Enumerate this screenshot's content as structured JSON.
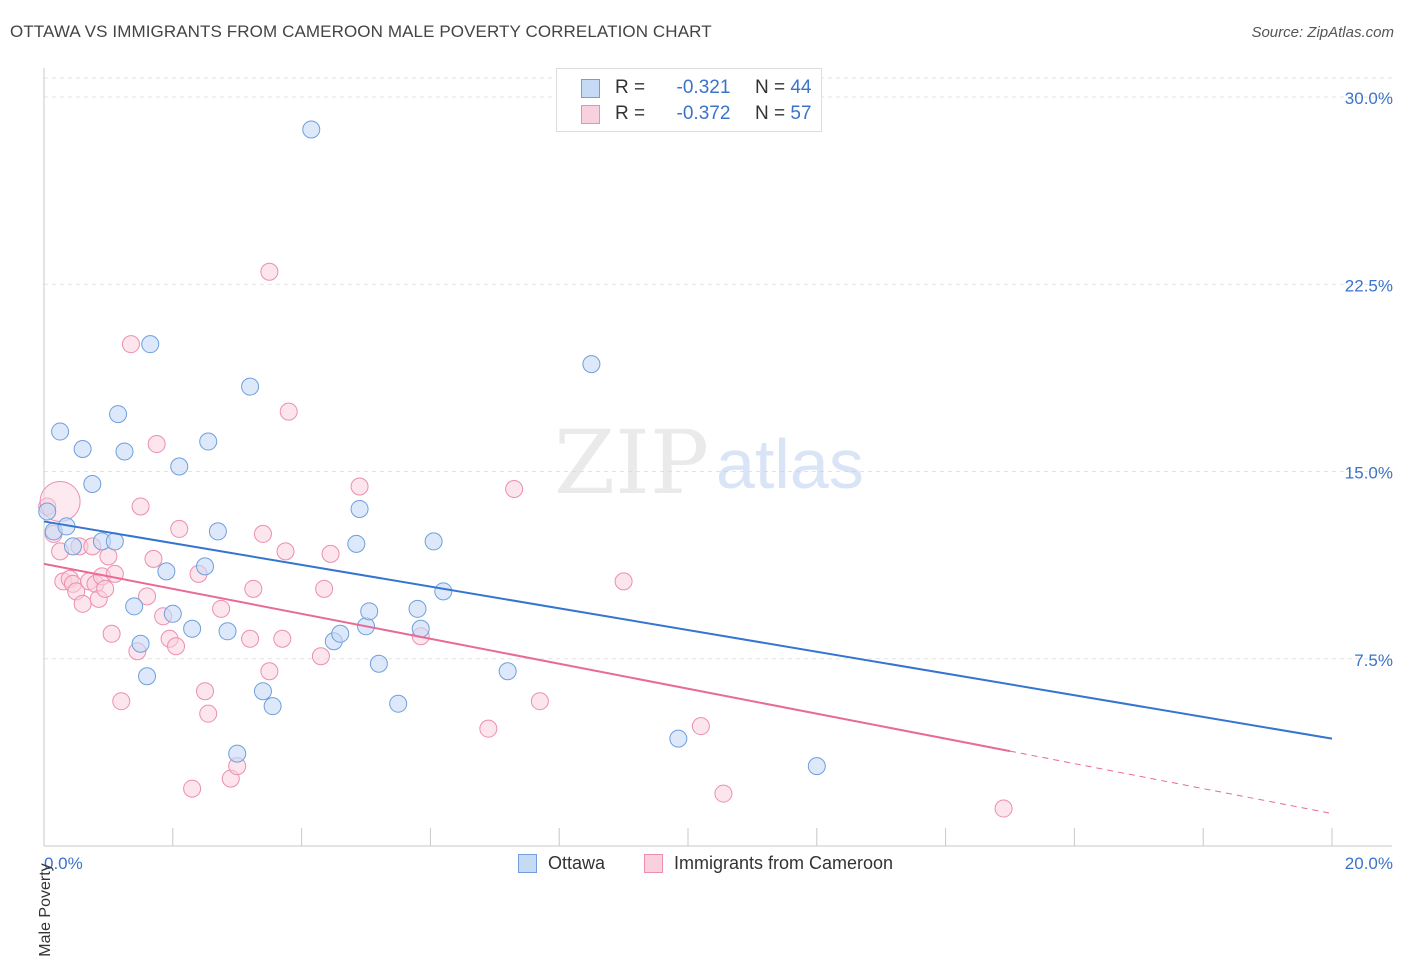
{
  "title": "OTTAWA VS IMMIGRANTS FROM CAMEROON MALE POVERTY CORRELATION CHART",
  "source": "Source: ZipAtlas.com",
  "watermark": {
    "zip": "ZIP",
    "atlas": "atlas"
  },
  "legend": {
    "r_label": "R =",
    "n_label": "N =",
    "rows": [
      {
        "r": "-0.321",
        "n": "44"
      },
      {
        "r": "-0.372",
        "n": "57"
      }
    ]
  },
  "bottom_legend": [
    "Ottawa",
    "Immigrants from Cameroon"
  ],
  "colors": {
    "ottawa_fill": "#c6daf6",
    "ottawa_stroke": "#6f9fdc",
    "ottawa_line": "#3574d0",
    "cameroon_fill": "#f9d0dd",
    "cameroon_stroke": "#ec8fae",
    "cameroon_line": "#e86a96",
    "tick_label": "#3b73c9"
  },
  "chart_data": {
    "type": "scatter",
    "title": "OTTAWA VS IMMIGRANTS FROM CAMEROON MALE POVERTY CORRELATION CHART",
    "xlabel": "",
    "ylabel": "Male Poverty",
    "xlim": [
      0,
      20
    ],
    "ylim": [
      0,
      30
    ],
    "x_tick_labels": [
      "0.0%",
      "20.0%"
    ],
    "y_ticks": [
      7.5,
      15,
      22.5,
      30
    ],
    "y_tick_labels": [
      "7.5%",
      "15.0%",
      "22.5%",
      "30.0%"
    ],
    "grid": "horizontal dashed",
    "legend_position": "top-center",
    "series": [
      {
        "name": "Ottawa",
        "r": -0.321,
        "n": 44,
        "trend": {
          "x": [
            0,
            20
          ],
          "y": [
            13.0,
            4.3
          ]
        },
        "points": [
          [
            0.05,
            13.4
          ],
          [
            0.15,
            12.6
          ],
          [
            0.35,
            12.8
          ],
          [
            0.25,
            16.6
          ],
          [
            0.45,
            12.0
          ],
          [
            0.6,
            15.9
          ],
          [
            0.75,
            14.5
          ],
          [
            0.9,
            12.2
          ],
          [
            1.1,
            12.2
          ],
          [
            1.15,
            17.3
          ],
          [
            1.25,
            15.8
          ],
          [
            1.4,
            9.6
          ],
          [
            1.5,
            8.1
          ],
          [
            1.6,
            6.8
          ],
          [
            1.65,
            20.1
          ],
          [
            1.9,
            11.0
          ],
          [
            2.0,
            9.3
          ],
          [
            2.1,
            15.2
          ],
          [
            2.3,
            8.7
          ],
          [
            2.5,
            11.2
          ],
          [
            2.55,
            16.2
          ],
          [
            2.7,
            12.6
          ],
          [
            2.85,
            8.6
          ],
          [
            3.0,
            3.7
          ],
          [
            3.2,
            18.4
          ],
          [
            3.4,
            6.2
          ],
          [
            3.55,
            5.6
          ],
          [
            4.15,
            28.7
          ],
          [
            4.5,
            8.2
          ],
          [
            4.6,
            8.5
          ],
          [
            4.85,
            12.1
          ],
          [
            4.9,
            13.5
          ],
          [
            5.0,
            8.8
          ],
          [
            5.05,
            9.4
          ],
          [
            5.5,
            5.7
          ],
          [
            5.2,
            7.3
          ],
          [
            5.8,
            9.5
          ],
          [
            5.85,
            8.7
          ],
          [
            6.05,
            12.2
          ],
          [
            6.2,
            10.2
          ],
          [
            7.2,
            7.0
          ],
          [
            8.5,
            19.3
          ],
          [
            9.85,
            4.3
          ],
          [
            12.0,
            3.2
          ]
        ]
      },
      {
        "name": "Immigrants from Cameroon",
        "r": -0.372,
        "n": 57,
        "trend": {
          "x": [
            0,
            15
          ],
          "y": [
            11.3,
            3.8
          ]
        },
        "trend_dashed": {
          "x": [
            15,
            20
          ],
          "y": [
            3.8,
            1.3
          ]
        },
        "points": [
          [
            0.05,
            13.6
          ],
          [
            0.15,
            12.5
          ],
          [
            0.25,
            11.8
          ],
          [
            0.3,
            10.6
          ],
          [
            0.4,
            10.7
          ],
          [
            0.45,
            10.5
          ],
          [
            0.5,
            10.2
          ],
          [
            0.55,
            12.0
          ],
          [
            0.6,
            9.7
          ],
          [
            0.7,
            10.6
          ],
          [
            0.75,
            12.0
          ],
          [
            0.8,
            10.5
          ],
          [
            0.85,
            9.9
          ],
          [
            0.9,
            10.8
          ],
          [
            0.95,
            10.3
          ],
          [
            1.0,
            11.6
          ],
          [
            1.05,
            8.5
          ],
          [
            1.1,
            10.9
          ],
          [
            1.2,
            5.8
          ],
          [
            1.35,
            20.1
          ],
          [
            1.45,
            7.8
          ],
          [
            1.5,
            13.6
          ],
          [
            1.6,
            10.0
          ],
          [
            1.7,
            11.5
          ],
          [
            1.75,
            16.1
          ],
          [
            1.85,
            9.2
          ],
          [
            1.95,
            8.3
          ],
          [
            2.05,
            8.0
          ],
          [
            2.1,
            12.7
          ],
          [
            2.3,
            2.3
          ],
          [
            2.4,
            10.9
          ],
          [
            2.5,
            6.2
          ],
          [
            2.55,
            5.3
          ],
          [
            2.75,
            9.5
          ],
          [
            2.9,
            2.7
          ],
          [
            3.0,
            3.2
          ],
          [
            3.2,
            8.3
          ],
          [
            3.25,
            10.3
          ],
          [
            3.4,
            12.5
          ],
          [
            3.5,
            7.0
          ],
          [
            3.5,
            23.0
          ],
          [
            3.7,
            8.3
          ],
          [
            3.75,
            11.8
          ],
          [
            3.8,
            17.4
          ],
          [
            4.3,
            7.6
          ],
          [
            4.35,
            10.3
          ],
          [
            4.45,
            11.7
          ],
          [
            4.9,
            14.4
          ],
          [
            5.85,
            8.4
          ],
          [
            7.3,
            14.3
          ],
          [
            6.9,
            4.7
          ],
          [
            7.7,
            5.8
          ],
          [
            9.0,
            10.6
          ],
          [
            10.2,
            4.8
          ],
          [
            10.55,
            2.1
          ],
          [
            14.9,
            1.5
          ],
          [
            0.25,
            13.8
          ]
        ]
      }
    ]
  }
}
